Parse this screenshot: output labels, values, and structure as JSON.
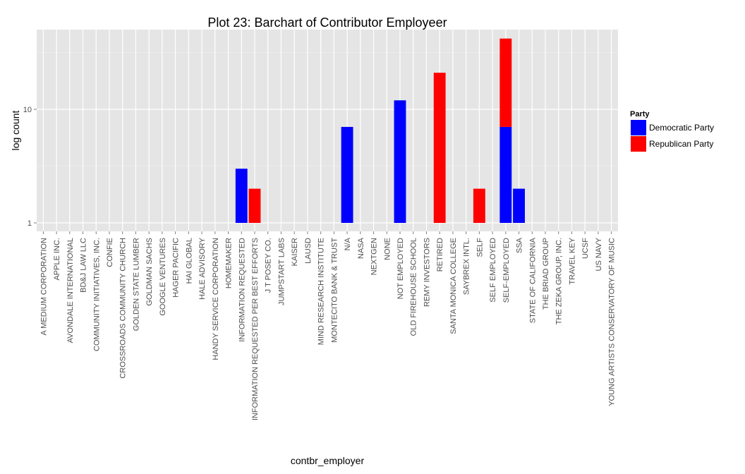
{
  "chart_data": {
    "type": "bar",
    "stacked": true,
    "title": "Plot 23: Barchart of Contributor Employeer",
    "xlabel": "contbr_employer",
    "ylabel": "log count",
    "yscale": "log10",
    "ylim": [
      1,
      45
    ],
    "yticks": [
      1,
      10
    ],
    "ytick_labels": [
      "1",
      "10"
    ],
    "grid": true,
    "categories": [
      "A MEDIUM CORPORATION",
      "APPLE INC.",
      "AVONDALE INTERNATIONAL",
      "BD&J LAW LLC",
      "COMMUNITY INITIATIVES, INC.",
      "CONFIE",
      "CROSSROADS COMMUNITY CHURCH",
      "GOLDEN STATE LUMBER",
      "GOLDMAN SACHS",
      "GOOGLE VENTURES",
      "HAGER PACIFIC",
      "HAI GLOBAL",
      "HALE ADVISORY",
      "HANDY SERVICE CORPORATION",
      "HOMEMAKER",
      "INFORMATION REQUESTED",
      "INFORMATION REQUESTED PER BEST EFFORTS",
      "J T POSEY CO.",
      "JUMPSTART LABS",
      "KAISER",
      "LAUSD",
      "MIND RESEARCH INSTITUTE",
      "MONTECITO BANK & TRUST",
      "N/A",
      "NASA",
      "NEXTGEN",
      "NONE",
      "NOT EMPLOYED",
      "OLD FIREHOUSE SCHOOL",
      "REMY INVESTORS",
      "RETIRED",
      "SANTA MONICA COLLEGE",
      "SAYBREX INTL.",
      "SELF",
      "SELF EMPLOYED",
      "SELF-EMPLOYED",
      "SSA",
      "STATE OF CALIFORNIA",
      "THE BRIAD GROUP",
      "THE ZEKA GROUP, INC.",
      "TRAVEL KEY",
      "UCSF",
      "US NAVY",
      "YOUNG ARTISTS CONSERVATORY OF MUSIC"
    ],
    "series": [
      {
        "name": "Democratic Party",
        "color": "#0000ff",
        "values": [
          1,
          1,
          1,
          1,
          1,
          1,
          1,
          1,
          1,
          1,
          1,
          1,
          1,
          1,
          1,
          3,
          0,
          1,
          1,
          1,
          1,
          1,
          1,
          7,
          1,
          1,
          1,
          12,
          1,
          1,
          0,
          1,
          1,
          0,
          1,
          7,
          2,
          1,
          1,
          1,
          1,
          1,
          1,
          1
        ]
      },
      {
        "name": "Republican Party",
        "color": "#ff0000",
        "values": [
          0,
          0,
          0,
          0,
          0,
          0,
          0,
          0,
          0,
          0,
          0,
          0,
          0,
          0,
          0,
          0,
          2,
          0,
          0,
          0,
          0,
          0,
          0,
          0,
          0,
          0,
          0,
          0,
          0,
          0,
          21,
          0,
          0,
          2,
          0,
          35,
          0,
          0,
          0,
          0,
          0,
          0,
          0,
          0
        ]
      }
    ],
    "legend": {
      "title": "Party",
      "position": "right",
      "entries": [
        "Democratic Party",
        "Republican Party"
      ]
    }
  }
}
